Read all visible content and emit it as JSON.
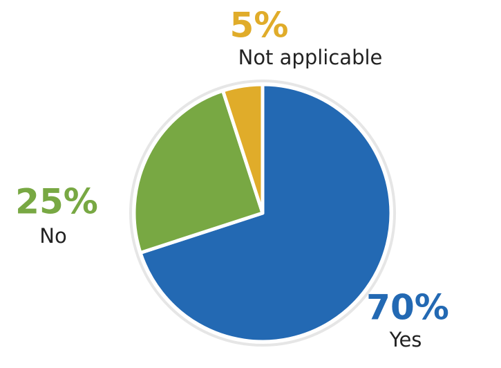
{
  "chart_data": {
    "type": "pie",
    "categories": [
      "Yes",
      "No",
      "Not applicable"
    ],
    "values": [
      70,
      25,
      5
    ],
    "value_labels": [
      "70%",
      "25%",
      "5%"
    ],
    "colors": [
      "#2369b3",
      "#78a843",
      "#e0ac2a"
    ]
  }
}
